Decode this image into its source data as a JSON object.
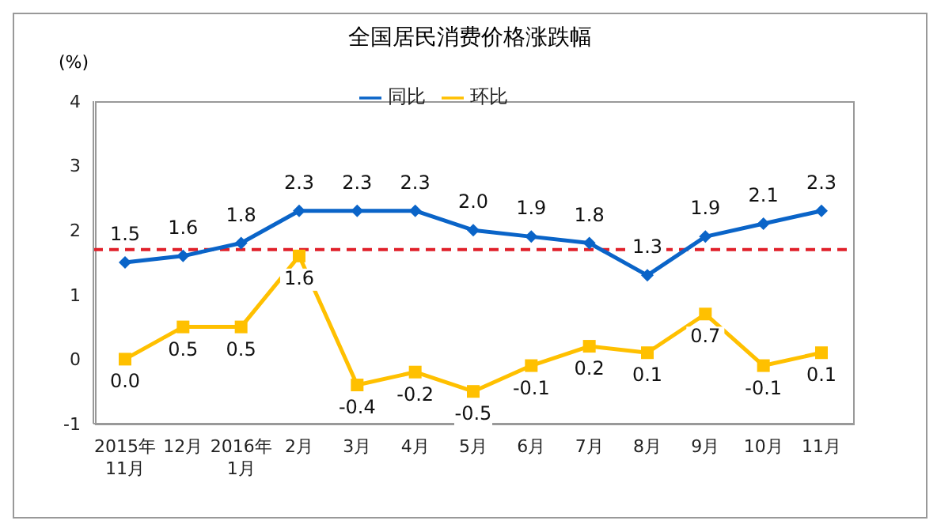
{
  "chart_data": {
    "type": "line",
    "title": "全国居民消费价格涨跌幅",
    "ylabel": "(%)",
    "categories": [
      "2015年\n11月",
      "12月",
      "2016年\n1月",
      "2月",
      "3月",
      "4月",
      "5月",
      "6月",
      "7月",
      "8月",
      "9月",
      "10月",
      "11月"
    ],
    "series": [
      {
        "name": "同比",
        "color": "#0a64c8",
        "marker": "diamond",
        "values": [
          1.5,
          1.6,
          1.8,
          2.3,
          2.3,
          2.3,
          2.0,
          1.9,
          1.8,
          1.3,
          1.9,
          2.1,
          2.3
        ],
        "value_labels": [
          "1.5",
          "1.6",
          "1.8",
          "2.3",
          "2.3",
          "2.3",
          "2.0",
          "1.9",
          "1.8",
          "1.3",
          "1.9",
          "2.1",
          "2.3"
        ]
      },
      {
        "name": "环比",
        "color": "#ffc000",
        "marker": "square",
        "values": [
          0.0,
          0.5,
          0.5,
          1.6,
          -0.4,
          -0.2,
          -0.5,
          -0.1,
          0.2,
          0.1,
          0.7,
          -0.1,
          0.1
        ],
        "value_labels": [
          "0.0",
          "0.5",
          "0.5",
          "1.6",
          "-0.4",
          "-0.2",
          "-0.5",
          "-0.1",
          "0.2",
          "0.1",
          "0.7",
          "-0.1",
          "0.1"
        ]
      }
    ],
    "ylim": [
      -1,
      4
    ],
    "yticks": [
      -1,
      0,
      1,
      2,
      3,
      4
    ],
    "grid": false,
    "legend": "top",
    "line_style": "solid",
    "ref_lines": [
      {
        "axis": "y",
        "value": 1.7,
        "color": "#e0202a",
        "line_style": "dashed"
      }
    ]
  }
}
